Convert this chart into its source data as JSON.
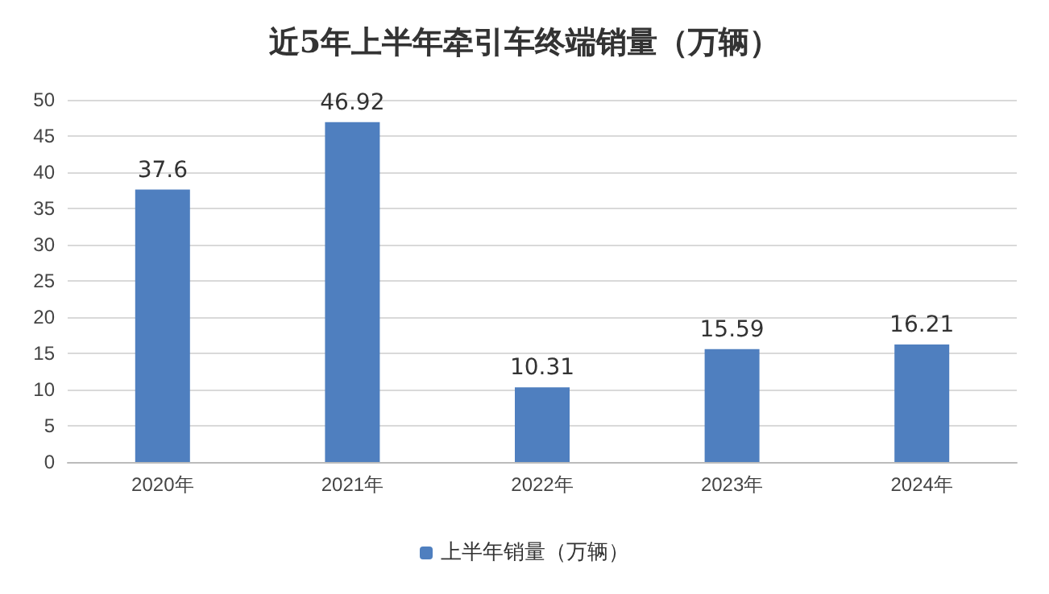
{
  "chart_data": {
    "type": "bar",
    "title": "近5年上半年牵引车终端销量（万辆）",
    "categories": [
      "2020年",
      "2021年",
      "2022年",
      "2023年",
      "2024年"
    ],
    "series": [
      {
        "name": "上半年销量（万辆）",
        "color": "#4f7fbf",
        "values": [
          37.6,
          46.92,
          10.31,
          15.59,
          16.21
        ]
      }
    ],
    "ylim": [
      0,
      50
    ],
    "yticks": [
      0,
      5,
      10,
      15,
      20,
      25,
      30,
      35,
      40,
      45,
      50
    ],
    "grid": "y",
    "legend": "bottom",
    "data_labels": true
  }
}
